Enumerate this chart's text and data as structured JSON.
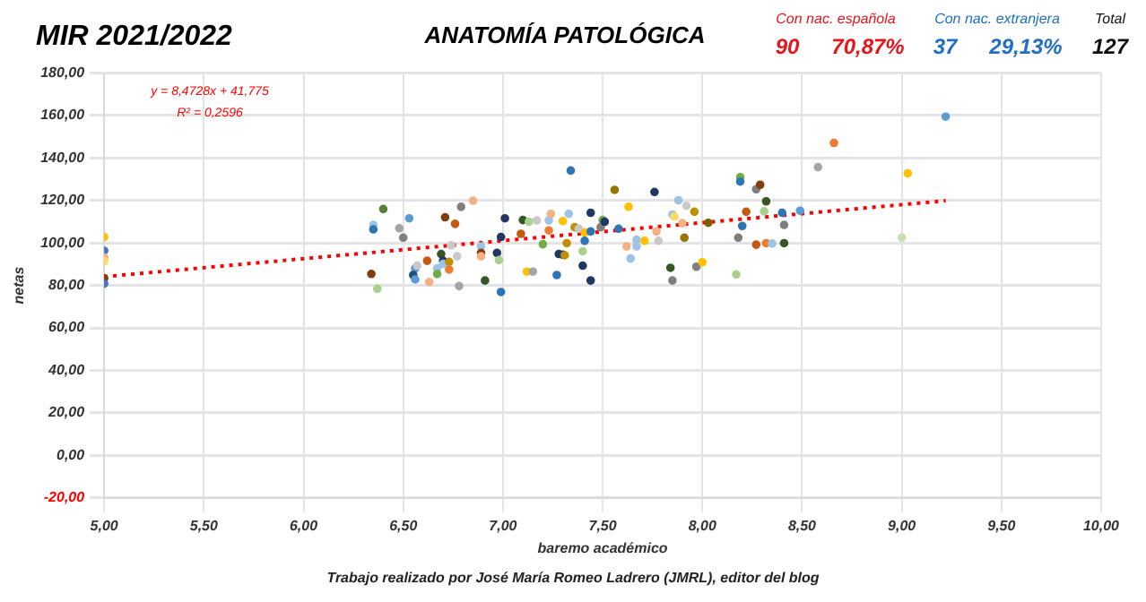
{
  "chart_data": {
    "type": "scatter",
    "title": "ANATOMÍA PATOLÓGICA",
    "subtitle": "MIR 2021/2022",
    "xlabel": "baremo académico",
    "ylabel": "netas",
    "annotations": [
      "Con nac. española",
      "90",
      "70,87%",
      "Con nac. extranjera",
      "37",
      "29,13%",
      "Total",
      "127",
      "y = 8,4728x + 41,775",
      "R² = 0,2596",
      "Trabajo realizado por José María Romeo Ladrero (JMRL), editor del blog"
    ],
    "xlim": [
      5,
      10
    ],
    "xticks": [
      {
        "value": 5,
        "label": "5,00"
      },
      {
        "value": 5.5,
        "label": "5,50"
      },
      {
        "value": 6,
        "label": "6,00"
      },
      {
        "value": 6.5,
        "label": "6,50"
      },
      {
        "value": 7,
        "label": "7,00"
      },
      {
        "value": 7.5,
        "label": "7,50"
      },
      {
        "value": 8,
        "label": "8,00"
      },
      {
        "value": 8.5,
        "label": "8,50"
      },
      {
        "value": 9,
        "label": "9,00"
      },
      {
        "value": 9.5,
        "label": "9,50"
      },
      {
        "value": 10,
        "label": "10,00"
      }
    ],
    "ylim": [
      -20,
      180
    ],
    "yticks": [
      {
        "value": -20,
        "label": "-20,00"
      },
      {
        "value": 0,
        "label": "0,00"
      },
      {
        "value": 20,
        "label": "20,00"
      },
      {
        "value": 40,
        "label": "40,00"
      },
      {
        "value": 60,
        "label": "60,00"
      },
      {
        "value": 80,
        "label": "80,00"
      },
      {
        "value": 100,
        "label": "100,00"
      },
      {
        "value": 120,
        "label": "120,00"
      },
      {
        "value": 140,
        "label": "140,00"
      },
      {
        "value": 160,
        "label": "160,00"
      },
      {
        "value": 180,
        "label": "180,00"
      }
    ],
    "grid": true,
    "legend": false,
    "marker": "circle",
    "series": [
      {
        "type": "scatter",
        "x": [
          5.0,
          5.0,
          5.0,
          5.0,
          5.0,
          5.0,
          6.34,
          6.37,
          6.35,
          6.35,
          6.4,
          6.48,
          6.5,
          6.53,
          6.56,
          6.55,
          6.56,
          6.57,
          6.62,
          6.63,
          6.67,
          6.67,
          6.69,
          6.7,
          6.7,
          6.71,
          6.73,
          6.73,
          6.74,
          6.76,
          6.77,
          6.78,
          6.79,
          6.85,
          6.89,
          6.89,
          6.89,
          6.91,
          6.97,
          6.98,
          6.99,
          6.99,
          7.01,
          7.09,
          7.1,
          7.12,
          7.13,
          7.15,
          7.17,
          7.2,
          7.23,
          7.23,
          7.24,
          7.27,
          7.28,
          7.3,
          7.3,
          7.31,
          7.32,
          7.33,
          7.34,
          7.36,
          7.38,
          7.4,
          7.4,
          7.41,
          7.41,
          7.44,
          7.44,
          7.44,
          7.49,
          7.5,
          7.51,
          7.56,
          7.58,
          7.62,
          7.63,
          7.64,
          7.67,
          7.67,
          7.71,
          7.76,
          7.77,
          7.78,
          7.84,
          7.85,
          7.85,
          7.86,
          7.88,
          7.9,
          7.91,
          7.92,
          7.96,
          7.97,
          8.0,
          8.03,
          8.17,
          8.18,
          8.19,
          8.19,
          8.2,
          8.22,
          8.27,
          8.27,
          8.29,
          8.31,
          8.32,
          8.32,
          8.35,
          8.4,
          8.41,
          8.41,
          8.49,
          8.58,
          8.66,
          9.0,
          9.03,
          9.22
        ],
        "values": [
          102.8,
          96.3,
          93.2,
          91.4,
          83.4,
          80.8,
          85.4,
          78.4,
          108.5,
          106.4,
          116.0,
          106.9,
          102.5,
          111.6,
          88.0,
          84.9,
          82.8,
          89.3,
          91.6,
          81.6,
          88.0,
          85.4,
          94.8,
          91.6,
          90.1,
          112.1,
          91.1,
          87.5,
          98.9,
          109.0,
          93.7,
          79.7,
          117.0,
          119.9,
          98.4,
          95.3,
          93.7,
          82.3,
          95.3,
          91.9,
          102.8,
          76.9,
          111.6,
          104.3,
          110.8,
          86.5,
          110.0,
          86.5,
          110.6,
          99.4,
          105.9,
          110.6,
          113.7,
          84.9,
          94.8,
          110.3,
          94.5,
          94.2,
          99.9,
          113.7,
          134.1,
          107.4,
          106.7,
          96.1,
          89.3,
          104.9,
          101.0,
          114.2,
          82.3,
          105.4,
          107.4,
          110.8,
          110.0,
          125.0,
          106.7,
          98.4,
          117.0,
          92.7,
          101.5,
          98.4,
          101.0,
          124.0,
          105.4,
          101.0,
          88.3,
          82.3,
          113.4,
          112.4,
          120.1,
          109.3,
          102.5,
          117.5,
          114.7,
          88.8,
          90.9,
          109.5,
          85.2,
          102.5,
          131.0,
          128.9,
          108.0,
          114.7,
          125.3,
          99.2,
          127.4,
          114.9,
          99.9,
          119.6,
          99.7,
          114.2,
          108.5,
          99.9,
          115.2,
          135.7,
          147.1,
          102.5,
          132.8,
          159.5
        ],
        "colors": [
          "#ffc000",
          "#4472c4",
          "#f4b183",
          "#ffd966",
          "#843c0c",
          "#4472c4",
          "#843c0c",
          "#a9d18e",
          "#9dc3e6",
          "#2e75b6",
          "#548235",
          "#a5a5a5",
          "#7f7f7f",
          "#5b9bd5",
          "#5b9bd5",
          "#1f4e79",
          "#5b9bd5",
          "#c9c9c9",
          "#c55a11",
          "#f4b183",
          "#9dc3e6",
          "#70ad47",
          "#375623",
          "#1f3864",
          "#9dc3e6",
          "#843c0c",
          "#bf9000",
          "#ed7d31",
          "#c9c9c9",
          "#c55a11",
          "#c9c9c9",
          "#a5a5a5",
          "#7f7f7f",
          "#f4b183",
          "#9dc3e6",
          "#843c0c",
          "#f4b183",
          "#375623",
          "#1f3864",
          "#a9d18e",
          "#1f3864",
          "#2e75b6",
          "#1f3864",
          "#c55a11",
          "#375623",
          "#ffc000",
          "#a9d18e",
          "#a5a5a5",
          "#c9c9c9",
          "#70ad47",
          "#ed7d31",
          "#9dc3e6",
          "#f4b183",
          "#2e75b6",
          "#1f3864",
          "#ffc000",
          "#1f3864",
          "#bf9000",
          "#bf9000",
          "#9dc3e6",
          "#2e75b6",
          "#bf9000",
          "#c9c9c9",
          "#a9d18e",
          "#1f3864",
          "#ffc000",
          "#2e75b6",
          "#1f3864",
          "#1f3864",
          "#2e75b6",
          "#7f7f7f",
          "#70ad47",
          "#1f3864",
          "#997300",
          "#2e75b6",
          "#f4b183",
          "#ffc000",
          "#9dc3e6",
          "#9dc3e6",
          "#9dc3e6",
          "#ffc000",
          "#1f3864",
          "#f4b183",
          "#c9c9c9",
          "#375623",
          "#7f7f7f",
          "#9dc3e6",
          "#ffd966",
          "#9dc3e6",
          "#f4b183",
          "#997300",
          "#c9c9c9",
          "#bf9000",
          "#7f7f7f",
          "#ffc000",
          "#7f6000",
          "#a9d18e",
          "#7f7f7f",
          "#70ad47",
          "#2e75b6",
          "#2e75b6",
          "#c55a11",
          "#7f7f7f",
          "#c55a11",
          "#843c0c",
          "#a9d18e",
          "#ed7d31",
          "#375623",
          "#9dc3e6",
          "#2e75b6",
          "#7f7f7f",
          "#375623",
          "#5b9bd5",
          "#a5a5a5",
          "#ed7d31",
          "#c5e0b4",
          "#ffc000",
          "#5b9bd5"
        ]
      },
      {
        "type": "line",
        "x": [
          5,
          9.22
        ],
        "values": [
          84.1,
          119.9
        ],
        "color": "#ff0000",
        "line_style": "dotted",
        "marker": "none"
      }
    ]
  }
}
